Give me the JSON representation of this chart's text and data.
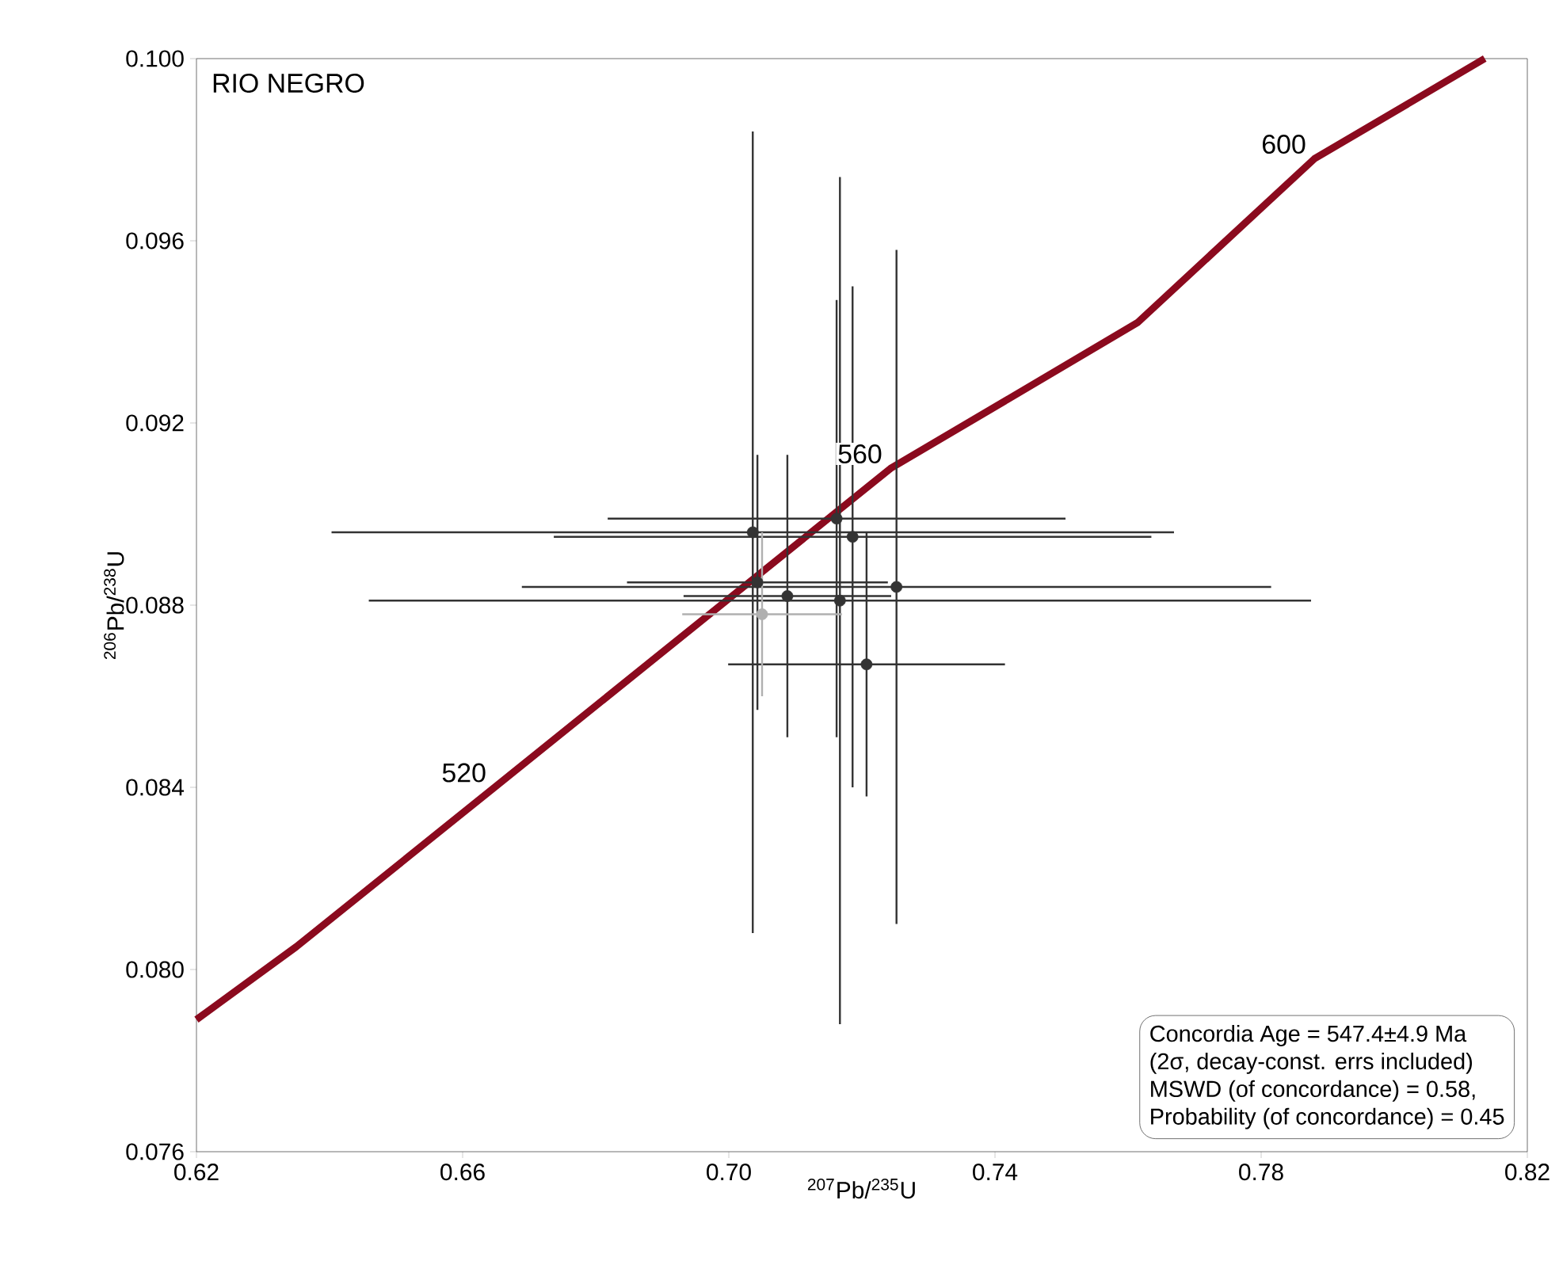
{
  "chart_data": {
    "type": "scatter",
    "title": "RIO NEGRO",
    "xlabel": "$^{207}$Pb/$^{235}$U",
    "ylabel": "$^{206}$Pb/$^{238}$U",
    "xlim": [
      0.62,
      0.82
    ],
    "ylim": [
      0.076,
      0.1
    ],
    "xticks": [
      0.62,
      0.66,
      {
        "value": 0.7,
        "label": "0.70"
      },
      0.74,
      0.78,
      0.82
    ],
    "yticks": [
      0.076,
      {
        "value": 0.08,
        "label": "0.080"
      },
      0.084,
      0.088,
      0.092,
      0.096,
      {
        "value": 0.1,
        "label": "0.100"
      }
    ],
    "grid": false,
    "series": [
      {
        "type": "line",
        "color": "#8b0a1e",
        "x": [
          0.62,
          0.635,
          0.6648,
          0.7243,
          0.7614,
          0.788,
          0.8136
        ],
        "values": [
          0.0789,
          0.0805,
          0.084,
          0.091,
          0.0942,
          0.0978,
          0.1
        ]
      },
      {
        "color": "#333333",
        "x": [
          0.7036,
          0.7167,
          0.7252,
          0.7186,
          0.7088,
          0.7207,
          0.7162,
          0.7043
        ],
        "values": [
          0.0896,
          0.0881,
          0.0884,
          0.0895,
          0.0882,
          0.0867,
          0.0899,
          0.0885
        ],
        "xerrors": [
          0.0633,
          0.0708,
          0.0563,
          0.0449,
          0.0156,
          0.0208,
          0.0344,
          0.0196
        ],
        "errors": [
          0.0088,
          0.0093,
          0.0074,
          0.0055,
          0.0031,
          0.0029,
          0.0048,
          0.0028
        ]
      },
      {
        "color": "#b0b0b0",
        "x": [
          0.705
        ],
        "values": [
          0.0878
        ],
        "xerrors": [
          0.012
        ],
        "errors": [
          0.0018
        ]
      }
    ],
    "annotations": [
      {
        "text": "520",
        "x": 0.6648,
        "y": 0.084
      },
      {
        "text": "560",
        "x": 0.7243,
        "y": 0.091
      },
      {
        "text": "600",
        "x": 0.788,
        "y": 0.0978
      },
      "Concordia Age = 547.4±4.9 Ma",
      "(2σ, decay-const. errs included)",
      "MSWD (of concordance) = 0.58,",
      "Probability (of concordance) = 0.45"
    ]
  }
}
